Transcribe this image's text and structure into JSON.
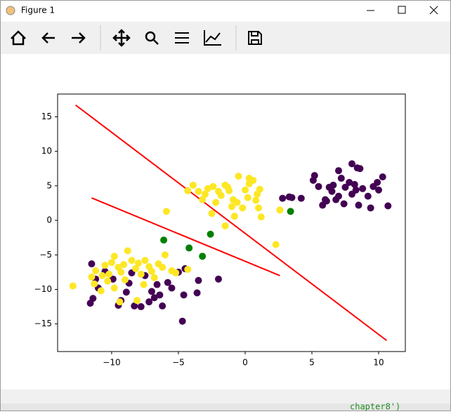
{
  "window": {
    "title": "Figure 1",
    "background_text": "chapter8')"
  },
  "chart_data": {
    "type": "scatter",
    "xlim": [
      -14.05,
      12.0
    ],
    "ylim": [
      -19.0,
      18.3
    ],
    "xticks": [
      {
        "value": -10,
        "label": "−10"
      },
      {
        "value": -5,
        "label": "−5"
      },
      0,
      5,
      10
    ],
    "yticks": [
      {
        "value": -15,
        "label": "−15"
      },
      {
        "value": -10,
        "label": "−10"
      },
      {
        "value": -5,
        "label": "−5"
      },
      0,
      5,
      10,
      15
    ],
    "series": [
      {
        "color": "#440154",
        "x": [
          5.2,
          5.1,
          5.5,
          6.3,
          6.0,
          6.5,
          7.0,
          7.2,
          7.5,
          7.8,
          8.0,
          8.4,
          8.6,
          8.2,
          8.8,
          9.2,
          9.6,
          10.0,
          10.3,
          10.7,
          9.4,
          8.5,
          8.0,
          7.4,
          6.8,
          5.8,
          6.1,
          4.2,
          3.5,
          2.8,
          3.3,
          7.0,
          8.3,
          9.9,
          6.6,
          -11.5,
          -11.2,
          -11.4,
          -11.6,
          -11.0,
          -10.5,
          -9.5,
          -9.3,
          -8.9,
          -8.7,
          -8.3,
          -7.8,
          -7.5,
          -7.0,
          -6.8,
          -6.4,
          -6.2,
          -5.8,
          -5.5,
          -5.0,
          -4.5,
          -3.5,
          -3.6,
          -2.0,
          -4.6,
          -4.7,
          -9.9,
          -8.5,
          -7.2,
          -6.6
        ],
        "values": [
          6.5,
          5.8,
          4.9,
          4.8,
          3.0,
          4.2,
          3.5,
          6.1,
          4.8,
          5.5,
          8.2,
          7.6,
          7.5,
          5.2,
          4.6,
          3.5,
          4.9,
          4.4,
          6.3,
          2.1,
          1.8,
          2.2,
          3.8,
          2.4,
          3.0,
          2.2,
          2.8,
          3.2,
          3.3,
          3.2,
          3.4,
          7.2,
          4.4,
          5.5,
          5.1,
          -6.3,
          -8.5,
          -11.3,
          -12.0,
          -9.8,
          -7.4,
          -12.3,
          -11.6,
          -10.4,
          -9.1,
          -12.4,
          -12.5,
          -8.0,
          -10.3,
          -11.2,
          -10.8,
          -12.4,
          -9.0,
          -9.8,
          -7.5,
          -7.0,
          -8.7,
          -10.5,
          -8.5,
          -10.8,
          -14.6,
          -8.5,
          -7.6,
          -11.8,
          -9.3
        ]
      },
      {
        "color": "#fde725",
        "x": [
          -4.3,
          -3.9,
          -3.5,
          -3.0,
          -2.8,
          -2.4,
          -2.0,
          -1.8,
          -1.5,
          -1.2,
          -0.9,
          -0.6,
          -0.2,
          0.2,
          0.3,
          0.6,
          0.8,
          1.1,
          1.0,
          1.2,
          -0.8,
          -1.5,
          -2.5,
          -3.2,
          -1.0,
          0.0,
          -0.5,
          0.3,
          2.6,
          2.3,
          -5.9,
          -2.2,
          -1.3,
          0.9,
          -12.9,
          -11.5,
          -11.2,
          -10.7,
          -10.5,
          -10.2,
          -10.0,
          -9.8,
          -9.5,
          -9.3,
          -9.0,
          -8.8,
          -8.5,
          -8.2,
          -8.0,
          -7.8,
          -7.5,
          -7.2,
          -7.0,
          -6.8,
          -6.5,
          -6.2,
          -6.0,
          -5.5,
          -5.2,
          -4.3,
          -10.8,
          -9.8,
          -9.4,
          -8.1,
          -11.3,
          -7.6,
          -9.1,
          -10.3
        ],
        "values": [
          4.3,
          5.1,
          4.2,
          3.8,
          4.6,
          4.9,
          4.2,
          3.6,
          5.1,
          4.3,
          3.0,
          2.6,
          1.8,
          3.3,
          5.3,
          5.8,
          2.9,
          4.5,
          1.8,
          0.5,
          0.6,
          -0.8,
          1.0,
          3.0,
          2.0,
          4.4,
          6.4,
          6.1,
          1.5,
          -3.5,
          1.3,
          2.6,
          4.8,
          3.8,
          -9.5,
          -8.2,
          -7.3,
          -8.0,
          -6.5,
          -7.8,
          -6.1,
          -5.2,
          -6.8,
          -7.5,
          -8.6,
          -4.4,
          -5.8,
          -7.0,
          -6.2,
          -7.8,
          -5.8,
          -6.7,
          -7.4,
          -8.3,
          -6.3,
          -6.8,
          -5.0,
          -7.3,
          -7.6,
          -7.1,
          -10.2,
          -9.8,
          -11.8,
          -11.6,
          -9.2,
          -9.3,
          -6.4,
          -8.8
        ]
      },
      {
        "color": "#008000",
        "x": [
          -6.1,
          -2.6,
          -4.2,
          -3.2,
          3.4
        ],
        "values": [
          -2.85,
          -2.0,
          -4.0,
          -5.2,
          1.3
        ]
      }
    ],
    "lines": [
      {
        "color": "#ff0000",
        "x": [
          -12.7,
          10.6
        ],
        "values": [
          16.7,
          -17.4
        ]
      },
      {
        "color": "#ff0000",
        "x": [
          -11.5,
          2.6
        ],
        "values": [
          3.25,
          -8.0
        ]
      }
    ]
  }
}
